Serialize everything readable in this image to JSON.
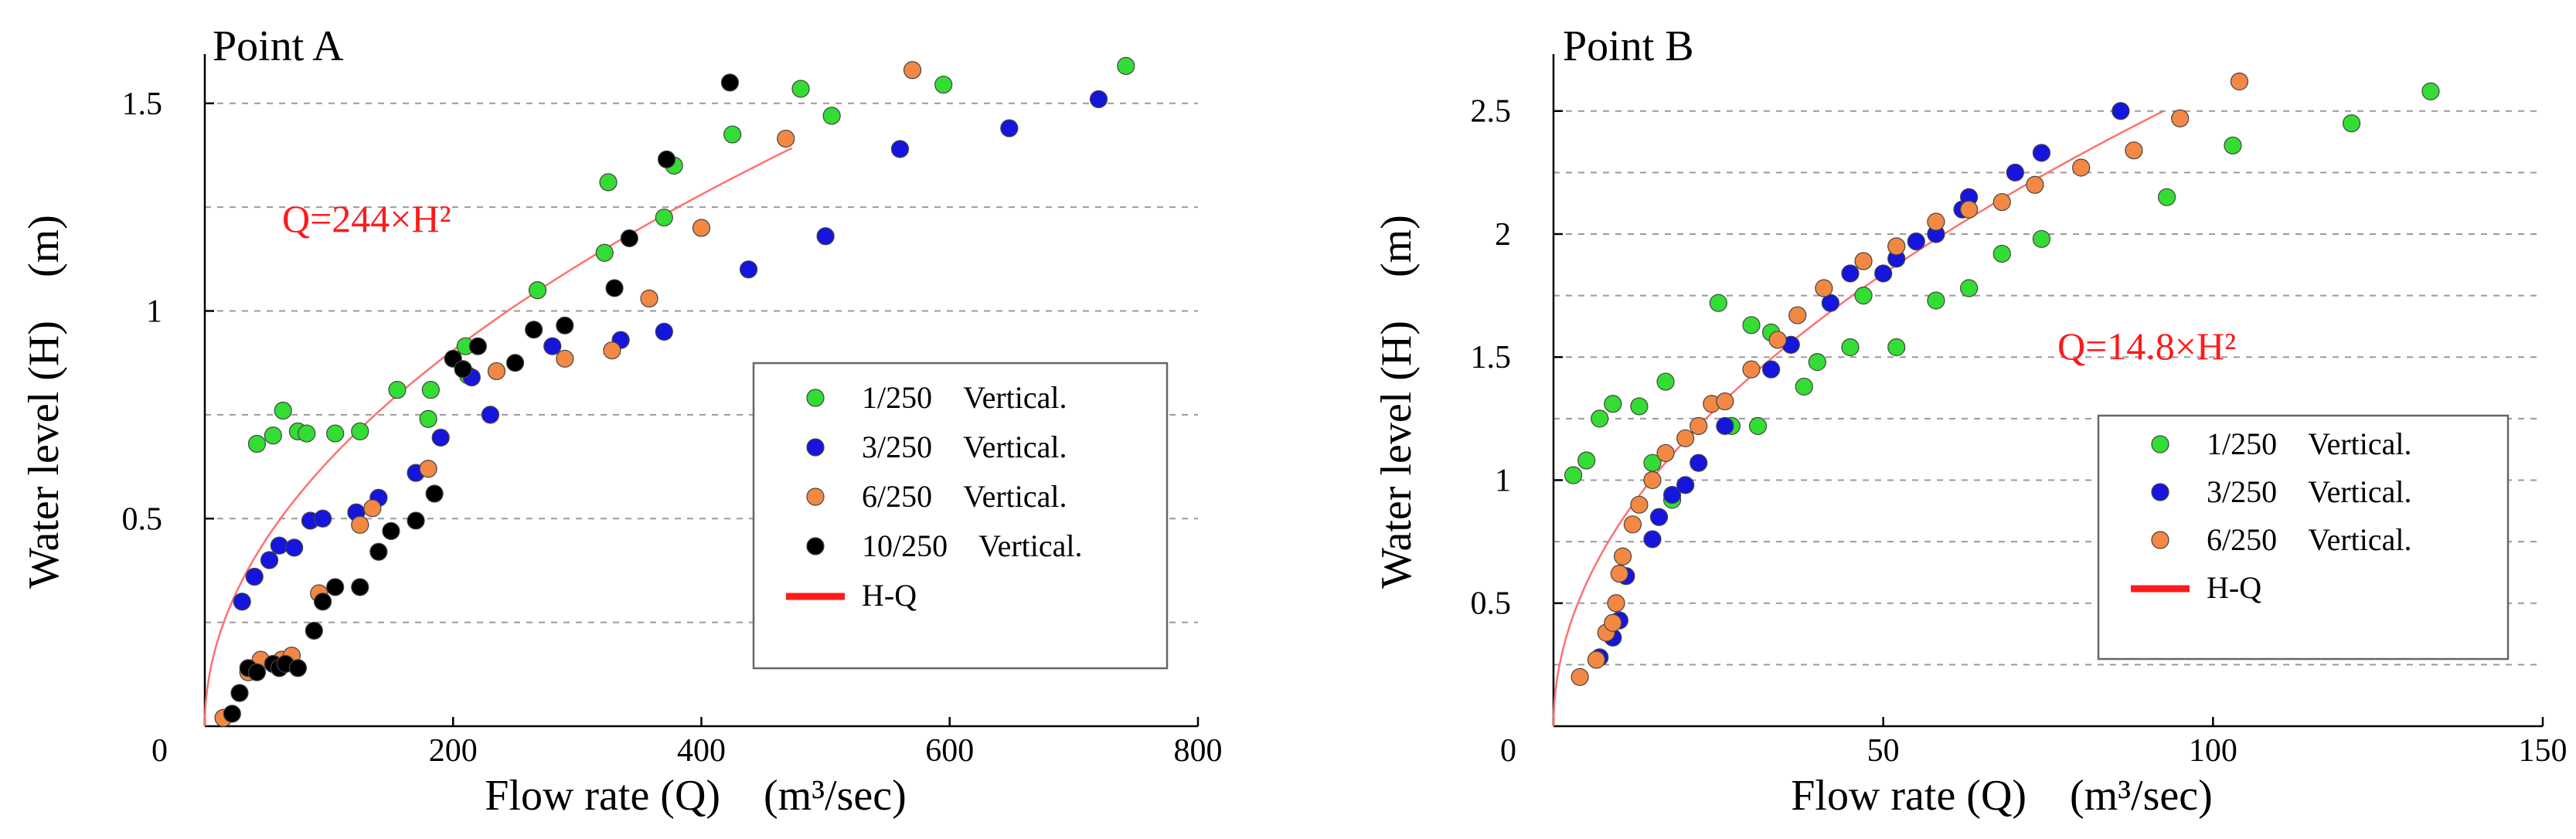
{
  "chart_data": [
    {
      "type": "scatter",
      "title": "Point A",
      "xlabel": "Flow rate (Q)　(m³/sec)",
      "ylabel": "Water level (H)　(m)",
      "xlim": [
        0,
        800
      ],
      "ylim": [
        0,
        1.6
      ],
      "x_ticks": [
        "0",
        "200",
        "400",
        "600",
        "800"
      ],
      "y_ticks": [
        "0.5",
        "1",
        "1.5"
      ],
      "y_zero_label": "0",
      "grid": true,
      "legend_position": "bottom-right",
      "equation": "Q=244×H²",
      "curve": {
        "name": "H-Q",
        "coef": 244,
        "color": "#ff7070",
        "q_max": 473
      },
      "series": [
        {
          "name": "1/250　Vertical.",
          "color": "#33dd33",
          "points": [
            [
              42,
              0.68
            ],
            [
              55,
              0.7
            ],
            [
              63,
              0.76
            ],
            [
              75,
              0.71
            ],
            [
              82,
              0.705
            ],
            [
              105,
              0.705
            ],
            [
              125,
              0.71
            ],
            [
              155,
              0.81
            ],
            [
              180,
              0.74
            ],
            [
              182,
              0.81
            ],
            [
              210,
              0.915
            ],
            [
              212,
              0.845
            ],
            [
              268,
              1.05
            ],
            [
              322,
              1.14
            ],
            [
              325,
              1.31
            ],
            [
              370,
              1.225
            ],
            [
              378,
              1.35
            ],
            [
              425,
              1.425
            ],
            [
              480,
              1.535
            ],
            [
              505,
              1.47
            ],
            [
              595,
              1.545
            ],
            [
              742,
              1.59
            ]
          ]
        },
        {
          "name": "3/250　Vertical.",
          "color": "#1515dd",
          "points": [
            [
              30,
              0.3
            ],
            [
              40,
              0.36
            ],
            [
              52,
              0.4
            ],
            [
              60,
              0.435
            ],
            [
              72,
              0.43
            ],
            [
              85,
              0.495
            ],
            [
              95,
              0.5
            ],
            [
              122,
              0.515
            ],
            [
              140,
              0.55
            ],
            [
              170,
              0.61
            ],
            [
              190,
              0.695
            ],
            [
              215,
              0.84
            ],
            [
              230,
              0.75
            ],
            [
              280,
              0.915
            ],
            [
              335,
              0.93
            ],
            [
              370,
              0.95
            ],
            [
              438,
              1.1
            ],
            [
              500,
              1.18
            ],
            [
              560,
              1.39
            ],
            [
              648,
              1.44
            ],
            [
              720,
              1.51
            ]
          ]
        },
        {
          "name": "6/250　Vertical.",
          "color": "#f28844",
          "points": [
            [
              15,
              0.02
            ],
            [
              35,
              0.13
            ],
            [
              45,
              0.16
            ],
            [
              55,
              0.15
            ],
            [
              62,
              0.16
            ],
            [
              70,
              0.17
            ],
            [
              92,
              0.32
            ],
            [
              125,
              0.485
            ],
            [
              135,
              0.525
            ],
            [
              180,
              0.62
            ],
            [
              235,
              0.855
            ],
            [
              290,
              0.885
            ],
            [
              328,
              0.905
            ],
            [
              358,
              1.03
            ],
            [
              400,
              1.2
            ],
            [
              468,
              1.415
            ],
            [
              570,
              1.58
            ]
          ]
        },
        {
          "name": "10/250　Vertical.",
          "color": "#000000",
          "points": [
            [
              22,
              0.03
            ],
            [
              28,
              0.08
            ],
            [
              35,
              0.14
            ],
            [
              42,
              0.13
            ],
            [
              55,
              0.15
            ],
            [
              60,
              0.14
            ],
            [
              65,
              0.15
            ],
            [
              75,
              0.14
            ],
            [
              88,
              0.23
            ],
            [
              95,
              0.3
            ],
            [
              105,
              0.335
            ],
            [
              125,
              0.335
            ],
            [
              140,
              0.42
            ],
            [
              150,
              0.47
            ],
            [
              170,
              0.495
            ],
            [
              185,
              0.56
            ],
            [
              200,
              0.885
            ],
            [
              208,
              0.86
            ],
            [
              220,
              0.915
            ],
            [
              250,
              0.875
            ],
            [
              265,
              0.955
            ],
            [
              290,
              0.965
            ],
            [
              330,
              1.055
            ],
            [
              342,
              1.175
            ],
            [
              372,
              1.365
            ],
            [
              423,
              1.55
            ]
          ]
        }
      ],
      "legend": [
        "1/250　Vertical.",
        "3/250　Vertical.",
        "6/250　Vertical.",
        "10/250　Vertical.",
        "H-Q"
      ]
    },
    {
      "type": "scatter",
      "title": "Point B",
      "xlabel": "Flow rate (Q)　(m³/sec)",
      "ylabel": "Water level (H)　(m)",
      "xlim": [
        0,
        150
      ],
      "ylim": [
        0,
        2.7
      ],
      "x_ticks": [
        "0",
        "50",
        "100",
        "150"
      ],
      "y_ticks": [
        "0.5",
        "1",
        "1.5",
        "2",
        "2.5"
      ],
      "y_zero_label": "0",
      "grid": true,
      "legend_position": "bottom-right",
      "equation": "Q=14.8×H²",
      "curve": {
        "name": "H-Q",
        "coef": 14.8,
        "color": "#ff7070",
        "q_max": 92.5
      },
      "series": [
        {
          "name": "1/250　Vertical.",
          "color": "#33dd33",
          "points": [
            [
              3,
              1.02
            ],
            [
              5,
              1.08
            ],
            [
              7,
              1.25
            ],
            [
              9,
              1.31
            ],
            [
              13,
              1.3
            ],
            [
              15,
              1.07
            ],
            [
              17,
              1.4
            ],
            [
              18,
              0.92
            ],
            [
              25,
              1.72
            ],
            [
              27,
              1.22
            ],
            [
              30,
              1.63
            ],
            [
              31,
              1.22
            ],
            [
              33,
              1.6
            ],
            [
              36,
              1.55
            ],
            [
              38,
              1.38
            ],
            [
              40,
              1.48
            ],
            [
              45,
              1.54
            ],
            [
              47,
              1.75
            ],
            [
              52,
              1.54
            ],
            [
              58,
              1.73
            ],
            [
              63,
              1.78
            ],
            [
              68,
              1.92
            ],
            [
              74,
              1.98
            ],
            [
              93,
              2.15
            ],
            [
              103,
              2.36
            ],
            [
              121,
              2.45
            ],
            [
              133,
              2.58
            ]
          ]
        },
        {
          "name": "3/250　Vertical.",
          "color": "#1515dd",
          "points": [
            [
              7,
              0.28
            ],
            [
              9,
              0.36
            ],
            [
              10,
              0.43
            ],
            [
              11,
              0.61
            ],
            [
              15,
              0.76
            ],
            [
              16,
              0.85
            ],
            [
              18,
              0.94
            ],
            [
              20,
              0.98
            ],
            [
              22,
              1.07
            ],
            [
              26,
              1.22
            ],
            [
              33,
              1.45
            ],
            [
              36,
              1.55
            ],
            [
              42,
              1.72
            ],
            [
              45,
              1.84
            ],
            [
              50,
              1.84
            ],
            [
              52,
              1.9
            ],
            [
              55,
              1.97
            ],
            [
              58,
              2.0
            ],
            [
              62,
              2.1
            ],
            [
              63,
              2.15
            ],
            [
              70,
              2.25
            ],
            [
              74,
              2.33
            ],
            [
              86,
              2.5
            ]
          ]
        },
        {
          "name": "6/250　Vertical.",
          "color": "#f28844",
          "points": [
            [
              4,
              0.2
            ],
            [
              6.5,
              0.27
            ],
            [
              8,
              0.38
            ],
            [
              9,
              0.42
            ],
            [
              9.5,
              0.5
            ],
            [
              10,
              0.62
            ],
            [
              10.5,
              0.69
            ],
            [
              12,
              0.82
            ],
            [
              13,
              0.9
            ],
            [
              15,
              1.0
            ],
            [
              17,
              1.11
            ],
            [
              20,
              1.17
            ],
            [
              22,
              1.22
            ],
            [
              24,
              1.31
            ],
            [
              26,
              1.32
            ],
            [
              30,
              1.45
            ],
            [
              34,
              1.57
            ],
            [
              37,
              1.67
            ],
            [
              41,
              1.78
            ],
            [
              47,
              1.89
            ],
            [
              52,
              1.95
            ],
            [
              58,
              2.05
            ],
            [
              63,
              2.1
            ],
            [
              68,
              2.13
            ],
            [
              73,
              2.2
            ],
            [
              80,
              2.27
            ],
            [
              88,
              2.34
            ],
            [
              95,
              2.47
            ],
            [
              104,
              2.62
            ]
          ]
        }
      ],
      "legend": [
        "1/250　Vertical.",
        "3/250　Vertical.",
        "6/250　Vertical.",
        "H-Q"
      ]
    }
  ]
}
